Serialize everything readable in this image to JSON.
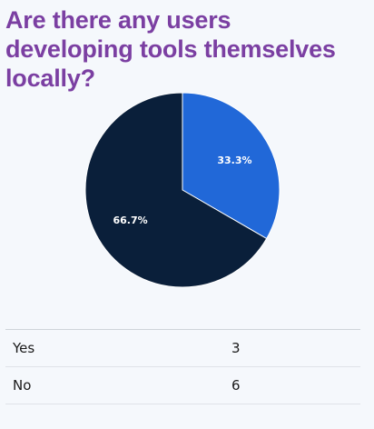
{
  "chart_data": {
    "type": "pie",
    "title": "Are there any users developing tools themselves locally?",
    "slices": [
      {
        "label": "Yes",
        "value": 3,
        "percent_label": "33.3%",
        "color": "#2168d8"
      },
      {
        "label": "No",
        "value": 6,
        "percent_label": "66.7%",
        "color": "#0a1f3a"
      }
    ]
  }
}
